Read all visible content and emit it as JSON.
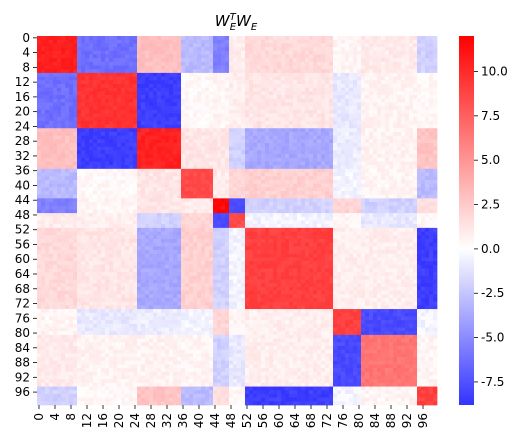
{
  "chart_data": {
    "type": "heatmap",
    "title": "W_E^T W_E",
    "title_base1": "W",
    "title_sup": "T",
    "title_sub1": "E",
    "title_base2": "W",
    "title_sub2": "E",
    "xlabel": "",
    "ylabel": "",
    "n": 100,
    "tick_labels": [
      "0",
      "4",
      "8",
      "12",
      "16",
      "20",
      "24",
      "28",
      "32",
      "36",
      "40",
      "44",
      "48",
      "52",
      "56",
      "60",
      "64",
      "68",
      "72",
      "76",
      "80",
      "84",
      "88",
      "92",
      "96"
    ],
    "colorbar": {
      "vmin": -8.8,
      "vmax": 12.0,
      "colormap": "bwr",
      "ticks": [
        "-7.5",
        "-5.0",
        "-2.5",
        "0.0",
        "2.5",
        "5.0",
        "7.5",
        "10.0"
      ]
    },
    "blocks": [
      {
        "start": 0,
        "end": 10,
        "value": 10.5
      },
      {
        "start": 10,
        "end": 25,
        "value": 9.6
      },
      {
        "start": 25,
        "end": 36,
        "value": 10.4
      },
      {
        "start": 36,
        "end": 44,
        "value": 8.5
      },
      {
        "start": 44,
        "end": 48,
        "value": 11.5
      },
      {
        "start": 48,
        "end": 52,
        "value": 8.5
      },
      {
        "start": 52,
        "end": 74,
        "value": 9.0
      },
      {
        "start": 74,
        "end": 81,
        "value": 9.0
      },
      {
        "start": 81,
        "end": 95,
        "value": 6.5
      },
      {
        "start": 95,
        "end": 100,
        "value": 9.0
      }
    ],
    "block_offdiag": [
      [
        0.0,
        -6.2,
        3.0,
        -3.0,
        -5.5,
        0.8,
        1.8,
        0.5,
        1.0,
        -2.0
      ],
      [
        -6.2,
        0.0,
        -8.3,
        0.3,
        0.5,
        0.8,
        1.2,
        -1.0,
        0.6,
        0.3
      ],
      [
        3.0,
        -8.3,
        0.0,
        1.2,
        1.2,
        -2.0,
        -3.8,
        -0.8,
        0.6,
        2.8
      ],
      [
        -3.0,
        0.3,
        1.2,
        0.0,
        1.0,
        2.0,
        2.2,
        -0.5,
        0.5,
        -3.0
      ],
      [
        -5.5,
        0.5,
        1.2,
        1.0,
        0.0,
        -8.0,
        -2.0,
        2.0,
        -2.0,
        1.5
      ],
      [
        0.8,
        0.8,
        -2.0,
        2.0,
        -8.0,
        0.0,
        -0.5,
        0.5,
        -1.0,
        0.5
      ],
      [
        1.8,
        1.2,
        -3.8,
        2.2,
        -2.0,
        -0.5,
        0.0,
        0.8,
        0.8,
        -8.3
      ],
      [
        0.5,
        -1.0,
        -0.8,
        -0.5,
        2.0,
        0.5,
        0.8,
        0.0,
        -7.8,
        -0.5
      ],
      [
        1.0,
        0.6,
        0.6,
        0.5,
        -2.0,
        -1.0,
        0.8,
        -7.8,
        0.0,
        0.5
      ],
      [
        -2.0,
        0.3,
        2.8,
        -3.0,
        1.5,
        0.5,
        -8.3,
        -0.5,
        0.5,
        0.0
      ]
    ]
  }
}
